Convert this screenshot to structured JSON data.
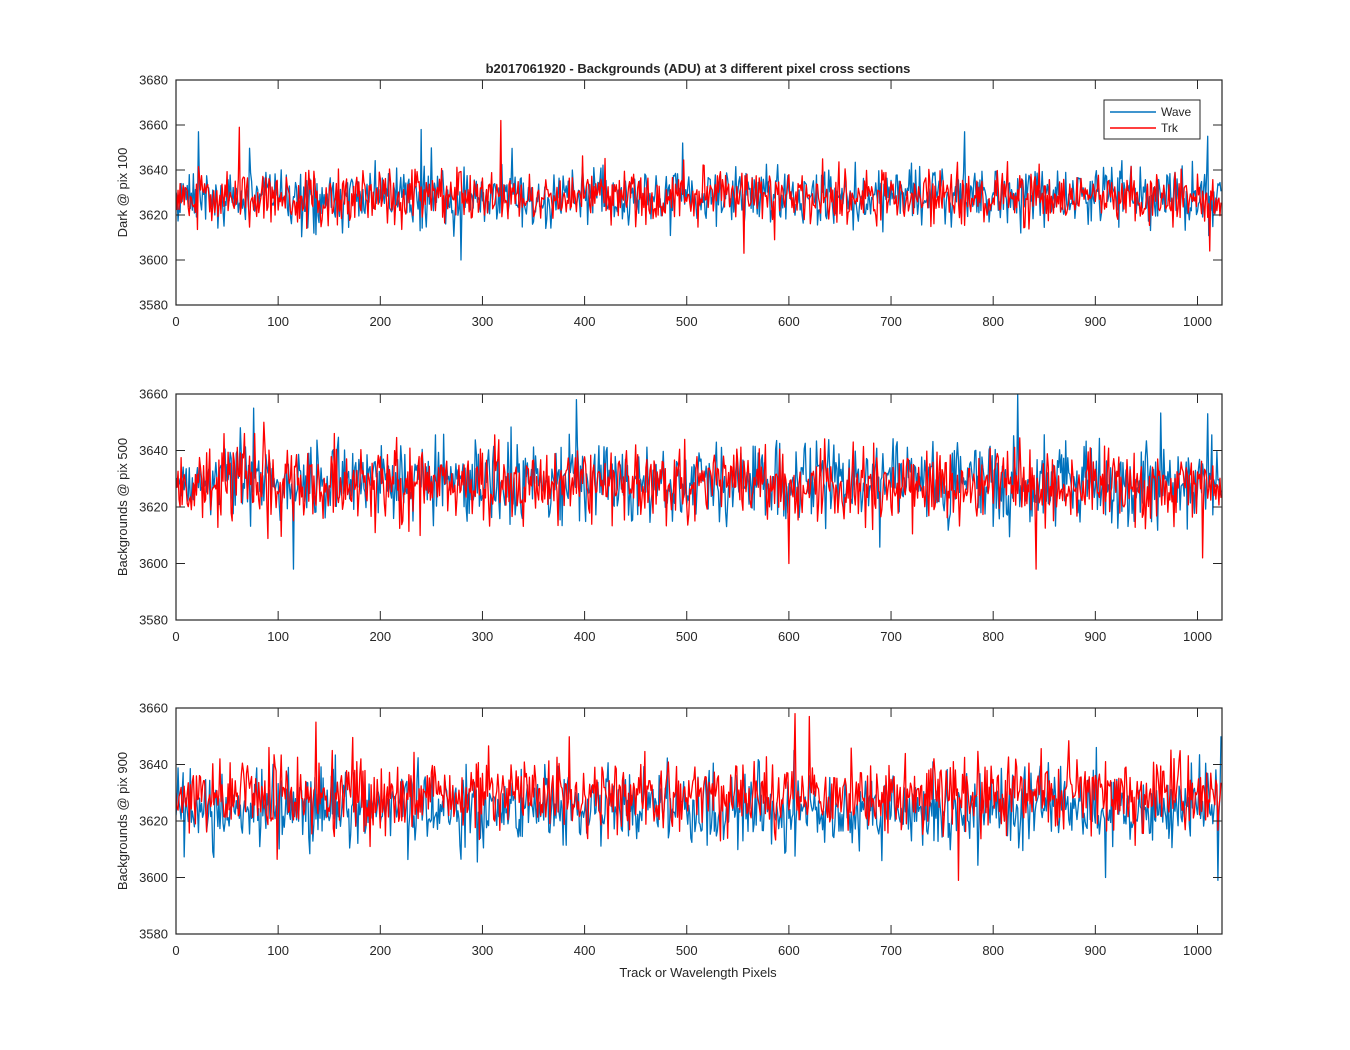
{
  "figure": {
    "title": "b2017061920 - Backgrounds (ADU) at 3 different pixel cross sections",
    "xlabel": "Track or Wavelength Pixels"
  },
  "colors": {
    "wave": "#0072BD",
    "trk": "#FF0000",
    "axes": "#262626"
  },
  "chart_data": [
    {
      "type": "line",
      "ylabel": "Dark @ pix 100",
      "xlim": [
        0,
        1024
      ],
      "ylim": [
        3580,
        3680
      ],
      "xticks": [
        0,
        100,
        200,
        300,
        400,
        500,
        600,
        700,
        800,
        900,
        1000
      ],
      "yticks": [
        3580,
        3600,
        3620,
        3640,
        3660,
        3680
      ],
      "legend": {
        "location": "top-right",
        "entries": [
          "Wave",
          "Trk"
        ]
      },
      "series": [
        {
          "name": "Wave",
          "color": "#0072BD",
          "n_points": 1024,
          "mean": 3628,
          "std": 7.5,
          "min": 3600,
          "max": 3658,
          "start_level": 3630,
          "notable_points": [
            [
              22,
              3657
            ],
            [
              240,
              3658
            ],
            [
              279,
              3600
            ],
            [
              496,
              3652
            ],
            [
              772,
              3657
            ],
            [
              1010,
              3655
            ]
          ]
        },
        {
          "name": "Trk",
          "color": "#FF0000",
          "n_points": 1024,
          "mean": 3628,
          "std": 7,
          "min": 3603,
          "max": 3662,
          "start_level": 3630,
          "notable_points": [
            [
              62,
              3659
            ],
            [
              318,
              3662
            ],
            [
              556,
              3603
            ],
            [
              1012,
              3604
            ]
          ]
        }
      ]
    },
    {
      "type": "line",
      "ylabel": "Backgrounds @ pix 500",
      "xlim": [
        0,
        1024
      ],
      "ylim": [
        3580,
        3660
      ],
      "xticks": [
        0,
        100,
        200,
        300,
        400,
        500,
        600,
        700,
        800,
        900,
        1000
      ],
      "yticks": [
        3580,
        3600,
        3620,
        3640,
        3660
      ],
      "series": [
        {
          "name": "Wave",
          "color": "#0072BD",
          "n_points": 1024,
          "mean": 3629,
          "std": 8.5,
          "min": 3598,
          "max": 3660,
          "start_level": 3630,
          "notable_points": [
            [
              76,
              3655
            ],
            [
              115,
              3598
            ],
            [
              392,
              3658
            ],
            [
              824,
              3660
            ],
            [
              1010,
              3653
            ]
          ]
        },
        {
          "name": "Trk",
          "color": "#FF0000",
          "n_points": 1024,
          "mean": 3628,
          "std": 8,
          "min": 3598,
          "max": 3650,
          "start_level": 3630,
          "notable_points": [
            [
              86,
              3650
            ],
            [
              600,
              3600
            ],
            [
              842,
              3598
            ],
            [
              1005,
              3602
            ]
          ]
        }
      ]
    },
    {
      "type": "line",
      "ylabel": "Backgrounds @ pix 900",
      "xlim": [
        0,
        1024
      ],
      "ylim": [
        3580,
        3660
      ],
      "xticks": [
        0,
        100,
        200,
        300,
        400,
        500,
        600,
        700,
        800,
        900,
        1000
      ],
      "yticks": [
        3580,
        3600,
        3620,
        3640,
        3660
      ],
      "series": [
        {
          "name": "Wave",
          "color": "#0072BD",
          "n_points": 1024,
          "mean": 3624,
          "std": 8,
          "min": 3599,
          "max": 3650,
          "start_level": 3622,
          "notable_points": [
            [
              605,
              3645
            ],
            [
              910,
              3600
            ],
            [
              1020,
              3599
            ],
            [
              1023,
              3650
            ]
          ]
        },
        {
          "name": "Trk",
          "color": "#FF0000",
          "n_points": 1024,
          "mean": 3629,
          "std": 8,
          "min": 3599,
          "max": 3658,
          "start_level": 3630,
          "notable_points": [
            [
              137,
              3655
            ],
            [
              606,
              3658
            ],
            [
              620,
              3657
            ],
            [
              766,
              3599
            ]
          ]
        }
      ]
    }
  ]
}
